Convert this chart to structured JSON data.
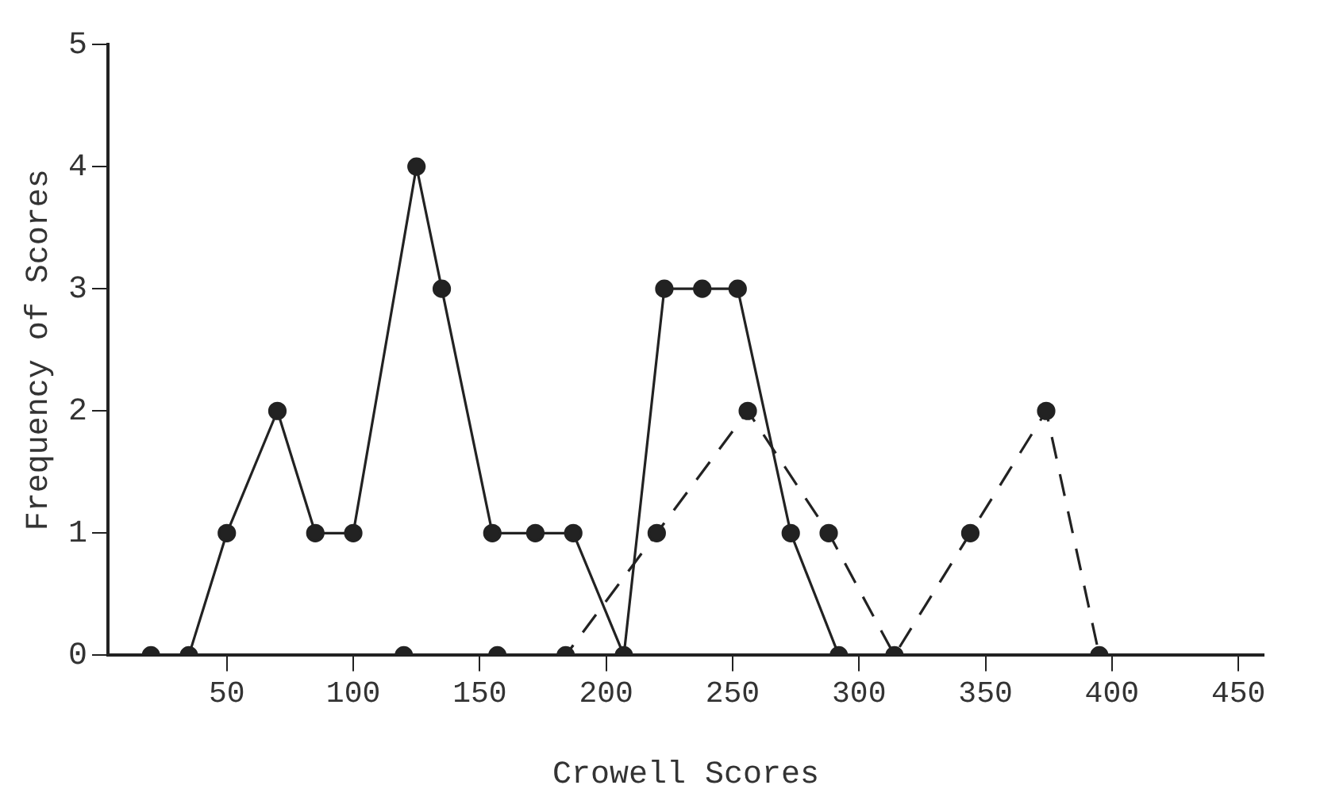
{
  "chart_data": {
    "type": "line",
    "xlabel": "Crowell Scores",
    "ylabel": "Frequency of Scores",
    "xlim": [
      3,
      460
    ],
    "xticks": [
      50,
      100,
      150,
      200,
      250,
      300,
      350,
      400,
      450
    ],
    "ylim": [
      0,
      5
    ],
    "yticks": [
      0,
      1,
      2,
      3,
      4,
      5
    ],
    "grid": false,
    "legend": false,
    "marker": "circle",
    "series": [
      {
        "color": "#222222",
        "line_style": "solid",
        "x": [
          20,
          35,
          50,
          70,
          85,
          100,
          125,
          135,
          155,
          172,
          187,
          207,
          223,
          238,
          252,
          273,
          292
        ],
        "values": [
          0,
          0,
          1,
          2,
          1,
          1,
          4,
          3,
          1,
          1,
          1,
          0,
          3,
          3,
          3,
          1,
          0
        ]
      },
      {
        "color": "#222222",
        "line_style": "dashed",
        "x": [
          120,
          157,
          184,
          220,
          256,
          288,
          314,
          344,
          374,
          395
        ],
        "values": [
          0,
          0,
          0,
          1,
          2,
          1,
          0,
          1,
          2,
          0
        ]
      }
    ]
  }
}
